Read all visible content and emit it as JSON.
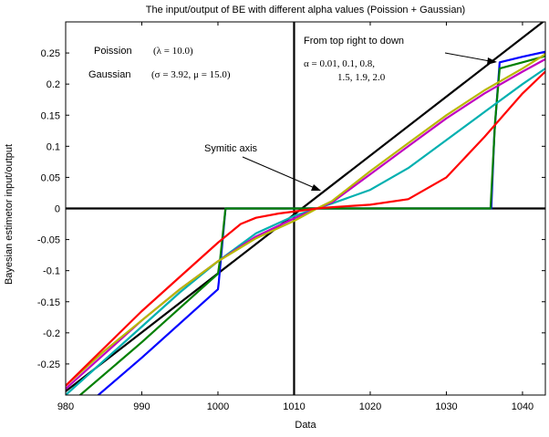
{
  "chart_data": {
    "type": "line",
    "title": "The input/output of BE with different alpha values (Poission + Gaussian)",
    "xlabel": "Data",
    "ylabel": "Bayesian estimetor input/output",
    "xlim": [
      980,
      1043
    ],
    "ylim": [
      -0.3,
      0.3
    ],
    "xticks": [
      980,
      990,
      1000,
      1010,
      1020,
      1030,
      1040
    ],
    "yticks": [
      -0.25,
      -0.2,
      -0.15,
      -0.1,
      -0.05,
      0,
      0.05,
      0.1,
      0.15,
      0.2,
      0.25
    ],
    "grid": false,
    "legend": "none",
    "annotations": {
      "poisson_label": "Poission",
      "poisson_param": "(λ = 10.0)",
      "gaussian_label": "Gaussian",
      "gaussian_param": "(σ = 3.92, μ = 15.0)",
      "order_note": "From top right to down",
      "alpha_line1": "α = 0.01, 0.1, 0.8,",
      "alpha_line2": "1.5, 1.9, 2.0",
      "axis_note": "Symitic axis"
    },
    "reference_lines": [
      {
        "kind": "vertical",
        "x": 1010,
        "color": "#000000"
      },
      {
        "kind": "horizontal",
        "y": 0,
        "color": "#000000"
      },
      {
        "kind": "diagonal",
        "x": [
          980,
          1043
        ],
        "y": [
          -0.294,
          0.303
        ],
        "color": "#000000"
      }
    ],
    "series": [
      {
        "alpha": 0.01,
        "color": "#0000ff",
        "x": [
          980,
          990,
          1000,
          1000.1,
          1001,
          1010,
          1020,
          1030,
          1035.9,
          1036.3,
          1037,
          1040,
          1043
        ],
        "y": [
          -0.345,
          -0.24,
          -0.13,
          -0.12,
          0,
          0,
          0,
          0,
          0,
          0.12,
          0.235,
          0.244,
          0.252
        ]
      },
      {
        "alpha": 0.1,
        "color": "#008000",
        "x": [
          980,
          990,
          1000,
          1000.3,
          1001,
          1010,
          1020,
          1030,
          1035.8,
          1036.4,
          1037,
          1040,
          1043
        ],
        "y": [
          -0.32,
          -0.215,
          -0.105,
          -0.08,
          0,
          0,
          0,
          0,
          0,
          0.14,
          0.225,
          0.235,
          0.245
        ]
      },
      {
        "alpha": 0.8,
        "color": "#00b0b0",
        "x": [
          980,
          985,
          990,
          995,
          1000,
          1005,
          1010,
          1013,
          1015,
          1020,
          1025,
          1030,
          1035,
          1040,
          1043
        ],
        "y": [
          -0.3,
          -0.245,
          -0.19,
          -0.135,
          -0.085,
          -0.04,
          -0.012,
          0,
          0.008,
          0.03,
          0.065,
          0.11,
          0.155,
          0.2,
          0.225
        ]
      },
      {
        "alpha": 1.5,
        "color": "#c000c0",
        "x": [
          980,
          985,
          990,
          995,
          1000,
          1005,
          1010,
          1013,
          1015,
          1020,
          1025,
          1030,
          1035,
          1040,
          1043
        ],
        "y": [
          -0.29,
          -0.235,
          -0.18,
          -0.13,
          -0.085,
          -0.045,
          -0.016,
          0,
          0.01,
          0.055,
          0.1,
          0.145,
          0.185,
          0.22,
          0.24
        ]
      },
      {
        "alpha": 1.9,
        "color": "#b8b800",
        "x": [
          980,
          985,
          990,
          995,
          1000,
          1005,
          1010,
          1013,
          1015,
          1020,
          1025,
          1030,
          1035,
          1040,
          1043
        ],
        "y": [
          -0.285,
          -0.23,
          -0.18,
          -0.13,
          -0.085,
          -0.048,
          -0.02,
          0,
          0.012,
          0.06,
          0.105,
          0.15,
          0.19,
          0.225,
          0.248
        ]
      },
      {
        "alpha": 2.0,
        "color": "#ff0000",
        "x": [
          980,
          985,
          990,
          995,
          1000,
          1003,
          1005,
          1008,
          1010,
          1013,
          1015,
          1020,
          1025,
          1030,
          1035,
          1040,
          1043
        ],
        "y": [
          -0.285,
          -0.225,
          -0.165,
          -0.11,
          -0.055,
          -0.025,
          -0.015,
          -0.008,
          -0.005,
          0,
          0.002,
          0.006,
          0.015,
          0.05,
          0.115,
          0.185,
          0.22
        ]
      }
    ]
  }
}
